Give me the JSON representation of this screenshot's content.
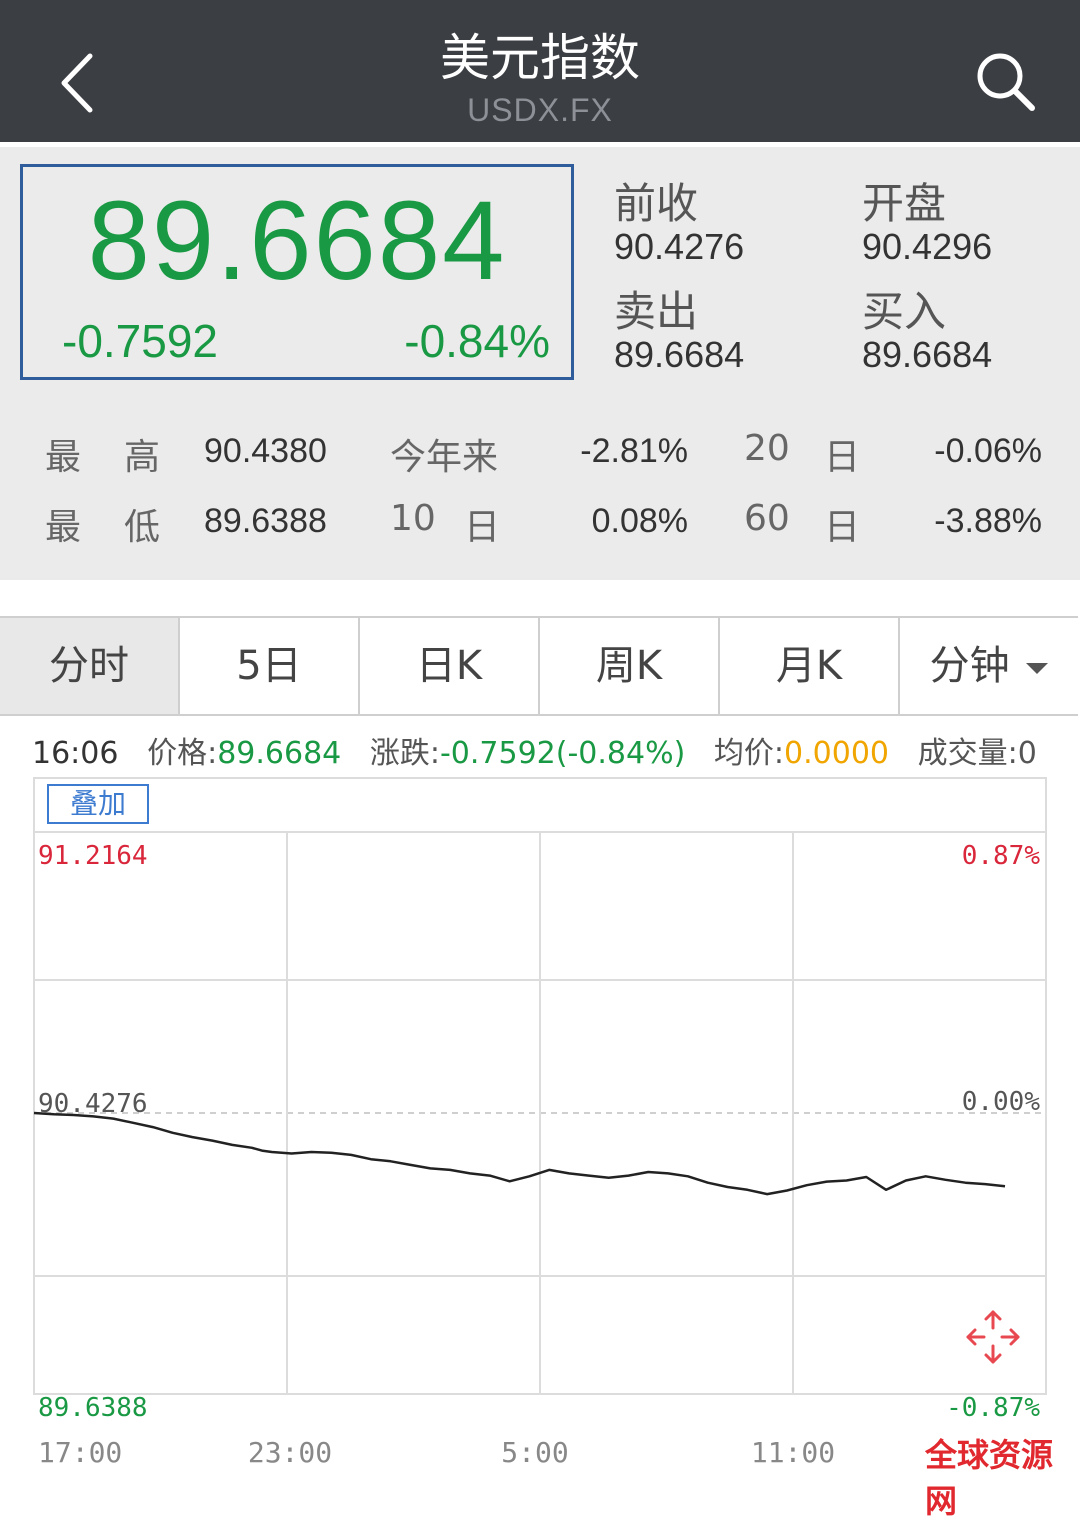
{
  "header": {
    "title": "美元指数",
    "subtitle": "USDX.FX",
    "back_icon": "chevron-left-icon",
    "search_icon": "search-icon"
  },
  "quote": {
    "last_price": "89.6684",
    "change_abs": "-0.7592",
    "change_pct": "-0.84%",
    "prev_close_label": "前收",
    "prev_close": "90.4276",
    "open_label": "开盘",
    "open": "90.4296",
    "ask_label": "卖出",
    "ask": "89.6684",
    "bid_label": "买入",
    "bid": "89.6684",
    "price_color": "#1a9944"
  },
  "stats": {
    "high_label_1": "最",
    "high_label_2": "高",
    "high": "90.4380",
    "low_label_1": "最",
    "low_label_2": "低",
    "low": "89.6388",
    "ytd_label": "今年来",
    "ytd": "-2.81%",
    "d10_label_num": "10",
    "d10_label_day": "日",
    "d10": "0.08%",
    "d20_label_num": "20",
    "d20_label_day": "日",
    "d20": "-0.06%",
    "d60_label_num": "60",
    "d60_label_day": "日",
    "d60": "-3.88%"
  },
  "tabs": [
    "分时",
    "5日",
    "日K",
    "周K",
    "月K",
    "分钟"
  ],
  "info": {
    "time": "16:06",
    "price_label": "价格:",
    "price": "89.6684",
    "change_label": "涨跌:",
    "change": "-0.7592(-0.84%)",
    "avg_label": "均价:",
    "avg": "0.0000",
    "volume_label": "成交量:",
    "volume": "0"
  },
  "overlay_label": "叠加",
  "watermark": "全球资源网",
  "chart_data": {
    "type": "line",
    "y_left_labels": {
      "top": "91.2164",
      "mid": "90.4276",
      "bottom": "89.6388"
    },
    "y_right_labels": {
      "top": "0.87%",
      "mid": "0.00%",
      "bottom": "-0.87%"
    },
    "x_labels": [
      "17:00",
      "23:00",
      "5:00",
      "11:00"
    ],
    "ylim": [
      89.6388,
      91.2164
    ],
    "reference": 90.4276,
    "colors": {
      "up": "#d9263a",
      "down": "#1a9944",
      "line": "#222222"
    },
    "series_points": [
      [
        0,
        90.4276
      ],
      [
        2,
        90.424
      ],
      [
        4,
        90.422
      ],
      [
        6,
        90.418
      ],
      [
        8,
        90.412
      ],
      [
        10,
        90.4
      ],
      [
        12,
        90.388
      ],
      [
        14,
        90.372
      ],
      [
        16,
        90.36
      ],
      [
        18,
        90.35
      ],
      [
        20,
        90.338
      ],
      [
        22,
        90.33
      ],
      [
        23,
        90.322
      ],
      [
        24,
        90.318
      ],
      [
        26,
        90.314
      ],
      [
        28,
        90.318
      ],
      [
        30,
        90.316
      ],
      [
        32,
        90.31
      ],
      [
        34,
        90.298
      ],
      [
        36,
        90.292
      ],
      [
        38,
        90.282
      ],
      [
        40,
        90.272
      ],
      [
        42,
        90.268
      ],
      [
        44,
        90.258
      ],
      [
        46,
        90.252
      ],
      [
        48,
        90.236
      ],
      [
        50,
        90.25
      ],
      [
        52,
        90.268
      ],
      [
        54,
        90.258
      ],
      [
        56,
        90.252
      ],
      [
        58,
        90.246
      ],
      [
        60,
        90.252
      ],
      [
        62,
        90.262
      ],
      [
        64,
        90.258
      ],
      [
        66,
        90.25
      ],
      [
        68,
        90.232
      ],
      [
        70,
        90.22
      ],
      [
        72,
        90.212
      ],
      [
        74,
        90.2
      ],
      [
        76,
        90.21
      ],
      [
        78,
        90.225
      ],
      [
        80,
        90.235
      ],
      [
        82,
        90.238
      ],
      [
        84,
        90.248
      ],
      [
        86,
        90.212
      ],
      [
        88,
        90.238
      ],
      [
        90,
        90.25
      ],
      [
        92,
        90.24
      ],
      [
        94,
        90.232
      ],
      [
        96,
        90.228
      ],
      [
        98,
        90.222
      ]
    ]
  }
}
